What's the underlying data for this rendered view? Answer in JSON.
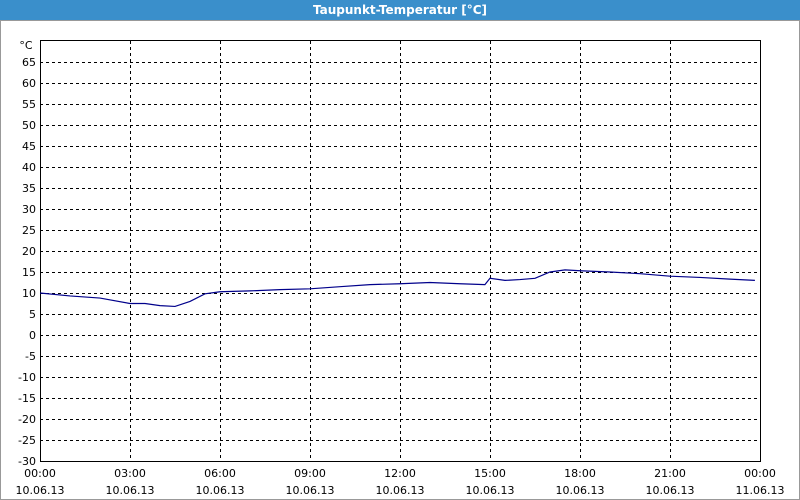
{
  "chart_data": {
    "type": "line",
    "title": "Taupunkt-Temperatur [°C]",
    "y_unit": "°C",
    "x": [
      0,
      1,
      2,
      3,
      3.5,
      4,
      4.5,
      5,
      5.5,
      6,
      7,
      8,
      9,
      10,
      11,
      12,
      13,
      14,
      14.83,
      15,
      15.5,
      16,
      16.5,
      17,
      17.5,
      18,
      19,
      20,
      21,
      22,
      23,
      23.83
    ],
    "series": [
      {
        "name": "Taupunkt",
        "color": "#00008b",
        "values": [
          10,
          9.3,
          8.8,
          7.5,
          7.5,
          7,
          6.8,
          8,
          9.8,
          10.3,
          10.5,
          10.8,
          11,
          11.5,
          12,
          12.2,
          12.5,
          12.2,
          12,
          13.5,
          13,
          13.2,
          13.5,
          15,
          15.5,
          15.3,
          15,
          14.6,
          14,
          13.7,
          13.3,
          13
        ]
      }
    ],
    "xlim": [
      0,
      24
    ],
    "xticks": [
      {
        "value": 0,
        "label": "00:00"
      },
      {
        "value": 3,
        "label": "03:00"
      },
      {
        "value": 6,
        "label": "06:00"
      },
      {
        "value": 9,
        "label": "09:00"
      },
      {
        "value": 12,
        "label": "12:00"
      },
      {
        "value": 15,
        "label": "15:00"
      },
      {
        "value": 18,
        "label": "18:00"
      },
      {
        "value": 21,
        "label": "21:00"
      },
      {
        "value": 24,
        "label": "00:00"
      }
    ],
    "xtick_dates": [
      "10.06.13",
      "10.06.13",
      "10.06.13",
      "10.06.13",
      "10.06.13",
      "10.06.13",
      "10.06.13",
      "10.06.13",
      "11.06.13"
    ],
    "ylim": [
      -30,
      70
    ],
    "yticks": [
      -30,
      -25,
      -20,
      -15,
      -10,
      -5,
      0,
      5,
      10,
      15,
      20,
      25,
      30,
      35,
      40,
      45,
      50,
      55,
      60,
      65
    ],
    "grid": true
  }
}
